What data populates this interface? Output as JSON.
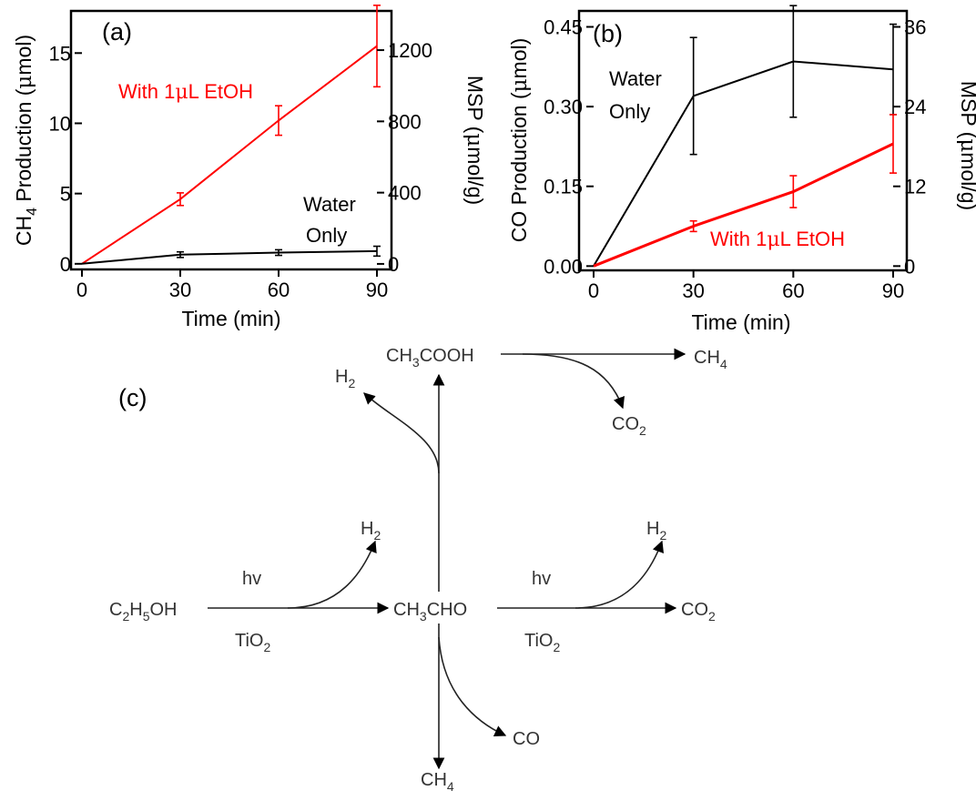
{
  "chart_data": [
    {
      "type": "line",
      "panel_label": "(a)",
      "xlabel": "Time (min)",
      "ylabel": "CH4 Production (μmol)",
      "ylabel_parts": {
        "pre": "CH",
        "sub": "4",
        "post": " Production (",
        "mu": "μ",
        "tail": "mol)"
      },
      "y2label": "MSP (μmol/g)",
      "y2label_parts": {
        "pre": "MSP (",
        "mu": "μ",
        "tail": "mol/g)"
      },
      "xlim": [
        0,
        90
      ],
      "ylim": [
        -0.4,
        18
      ],
      "y2lim": [
        -31,
        1420
      ],
      "x_ticks": [
        "0",
        "30",
        "60",
        "90"
      ],
      "y_ticks": [
        "0",
        "5",
        "10",
        "15"
      ],
      "y2_ticks": [
        "0",
        "400",
        "800",
        "1200"
      ],
      "grid": false,
      "series": [
        {
          "name": "With 1μL EtOH",
          "color": "#ff0000",
          "x": [
            0,
            30,
            60,
            90
          ],
          "y": [
            0,
            4.6,
            10.2,
            15.5
          ],
          "err": [
            0,
            0.45,
            1.05,
            2.9
          ],
          "label_parts": {
            "pre": "With 1",
            "mu": "μ",
            "tail": "L EtOH"
          }
        },
        {
          "name": "Water Only",
          "color": "#000000",
          "x": [
            0,
            30,
            60,
            90
          ],
          "y": [
            0,
            0.65,
            0.8,
            0.9
          ],
          "err": [
            0,
            0.2,
            0.2,
            0.35
          ],
          "label_lines": [
            "Water",
            "Only"
          ]
        }
      ]
    },
    {
      "type": "line",
      "panel_label": "(b)",
      "xlabel": "Time (min)",
      "ylabel": "CO Production (μmol)",
      "ylabel_parts": {
        "pre": "CO Production (",
        "mu": "μ",
        "tail": "mol)"
      },
      "y2label": "MSP (μmol/g)",
      "y2label_parts": {
        "pre": "MSP (",
        "mu": "μ",
        "tail": "mol/g)"
      },
      "xlim": [
        0,
        90
      ],
      "ylim": [
        -0.008,
        0.48
      ],
      "y2lim": [
        -0.64,
        38.4
      ],
      "x_ticks": [
        "0",
        "30",
        "60",
        "90"
      ],
      "y_ticks": [
        "0.00",
        "0.15",
        "0.30",
        "0.45"
      ],
      "y2_ticks": [
        "0",
        "12",
        "24",
        "36"
      ],
      "grid": false,
      "series": [
        {
          "name": "Water Only",
          "color": "#000000",
          "x": [
            0,
            30,
            60,
            90
          ],
          "y": [
            0,
            0.32,
            0.385,
            0.37
          ],
          "err": [
            0,
            0.11,
            0.105,
            0.085
          ],
          "label_lines": [
            "Water",
            "Only"
          ]
        },
        {
          "name": "With 1μL EtOH",
          "color": "#ff0000",
          "x": [
            0,
            30,
            60,
            90
          ],
          "y": [
            0,
            0.075,
            0.14,
            0.23
          ],
          "err": [
            0,
            0.01,
            0.03,
            0.055
          ],
          "label_parts": {
            "pre": "With 1",
            "mu": "μ",
            "tail": "L EtOH"
          }
        }
      ]
    }
  ],
  "scheme": {
    "panel_label": "(c)",
    "ethanol": {
      "a": "C",
      "a_sub": "2",
      "b": "H",
      "b_sub": "5",
      "c": "OH"
    },
    "acetaldehyde": {
      "a": "CH",
      "a_sub": "3",
      "b": "CHO"
    },
    "acetic_acid": {
      "a": "CH",
      "a_sub": "3",
      "b": "COOH"
    },
    "h2": {
      "a": "H",
      "a_sub": "2"
    },
    "co2": {
      "a": "CO",
      "a_sub": "2"
    },
    "ch4": {
      "a": "CH",
      "a_sub": "4"
    },
    "co": "CO",
    "hv": "hv",
    "tio2": {
      "a": "TiO",
      "a_sub": "2"
    }
  }
}
